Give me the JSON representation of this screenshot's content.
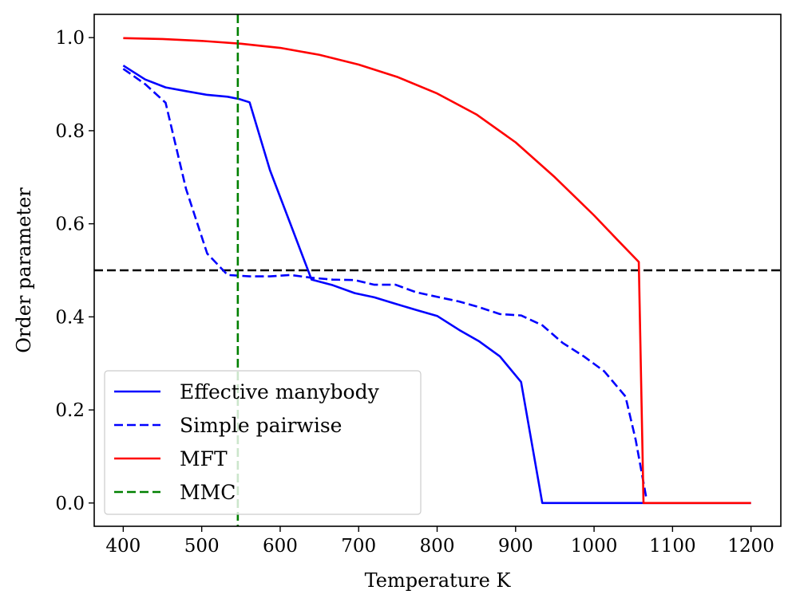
{
  "chart_data": {
    "type": "line",
    "xlabel": "Temperature K",
    "ylabel": "Order parameter",
    "xlim": [
      363,
      1238
    ],
    "ylim": [
      -0.05,
      1.05
    ],
    "xticks": [
      400,
      500,
      600,
      700,
      800,
      900,
      1000,
      1100,
      1200
    ],
    "yticks": [
      0.0,
      0.2,
      0.4,
      0.6,
      0.8,
      1.0
    ],
    "xtick_labels": [
      "400",
      "500",
      "600",
      "700",
      "800",
      "900",
      "1000",
      "1100",
      "1200"
    ],
    "ytick_labels": [
      "0.0",
      "0.2",
      "0.4",
      "0.6",
      "0.8",
      "1.0"
    ],
    "grid": false,
    "legend_position": "lower-left",
    "series": [
      {
        "name": "Effective manybody",
        "color": "#0000ff",
        "dash": "solid",
        "points": [
          [
            400,
            0.94
          ],
          [
            428,
            0.91
          ],
          [
            454,
            0.893
          ],
          [
            480,
            0.885
          ],
          [
            507,
            0.877
          ],
          [
            533,
            0.873
          ],
          [
            548,
            0.868
          ],
          [
            561,
            0.861
          ],
          [
            587,
            0.715
          ],
          [
            613,
            0.6
          ],
          [
            640,
            0.48
          ],
          [
            667,
            0.468
          ],
          [
            695,
            0.451
          ],
          [
            720,
            0.442
          ],
          [
            747,
            0.428
          ],
          [
            773,
            0.415
          ],
          [
            800,
            0.402
          ],
          [
            828,
            0.372
          ],
          [
            853,
            0.348
          ],
          [
            880,
            0.315
          ],
          [
            907,
            0.26
          ],
          [
            934,
            0.0
          ],
          [
            1200,
            0.0
          ]
        ]
      },
      {
        "name": "Simple pairwise",
        "color": "#0000ff",
        "dash": "dashed",
        "points": [
          [
            400,
            0.933
          ],
          [
            428,
            0.9
          ],
          [
            454,
            0.86
          ],
          [
            480,
            0.675
          ],
          [
            507,
            0.536
          ],
          [
            533,
            0.49
          ],
          [
            561,
            0.487
          ],
          [
            587,
            0.487
          ],
          [
            613,
            0.49
          ],
          [
            640,
            0.484
          ],
          [
            667,
            0.48
          ],
          [
            695,
            0.479
          ],
          [
            720,
            0.469
          ],
          [
            747,
            0.469
          ],
          [
            773,
            0.453
          ],
          [
            800,
            0.443
          ],
          [
            828,
            0.433
          ],
          [
            853,
            0.421
          ],
          [
            880,
            0.406
          ],
          [
            907,
            0.403
          ],
          [
            934,
            0.382
          ],
          [
            960,
            0.344
          ],
          [
            987,
            0.315
          ],
          [
            1013,
            0.283
          ],
          [
            1040,
            0.229
          ],
          [
            1053,
            0.136
          ],
          [
            1067,
            0.007
          ]
        ]
      },
      {
        "name": "MFT",
        "color": "#ff0000",
        "dash": "solid",
        "points": [
          [
            400,
            0.999
          ],
          [
            450,
            0.997
          ],
          [
            500,
            0.993
          ],
          [
            550,
            0.987
          ],
          [
            600,
            0.978
          ],
          [
            650,
            0.963
          ],
          [
            700,
            0.942
          ],
          [
            750,
            0.915
          ],
          [
            800,
            0.88
          ],
          [
            850,
            0.835
          ],
          [
            900,
            0.775
          ],
          [
            950,
            0.7
          ],
          [
            1000,
            0.618
          ],
          [
            1030,
            0.565
          ],
          [
            1057,
            0.518
          ],
          [
            1063,
            0.0
          ],
          [
            1200,
            0.0
          ]
        ]
      },
      {
        "name": "MMC",
        "color": "#008000",
        "dash": "dashed",
        "vertical_line_x": 546
      }
    ],
    "reference_lines": [
      {
        "orientation": "horizontal",
        "y": 0.5,
        "color": "#000000",
        "dash": "dashed"
      }
    ]
  }
}
